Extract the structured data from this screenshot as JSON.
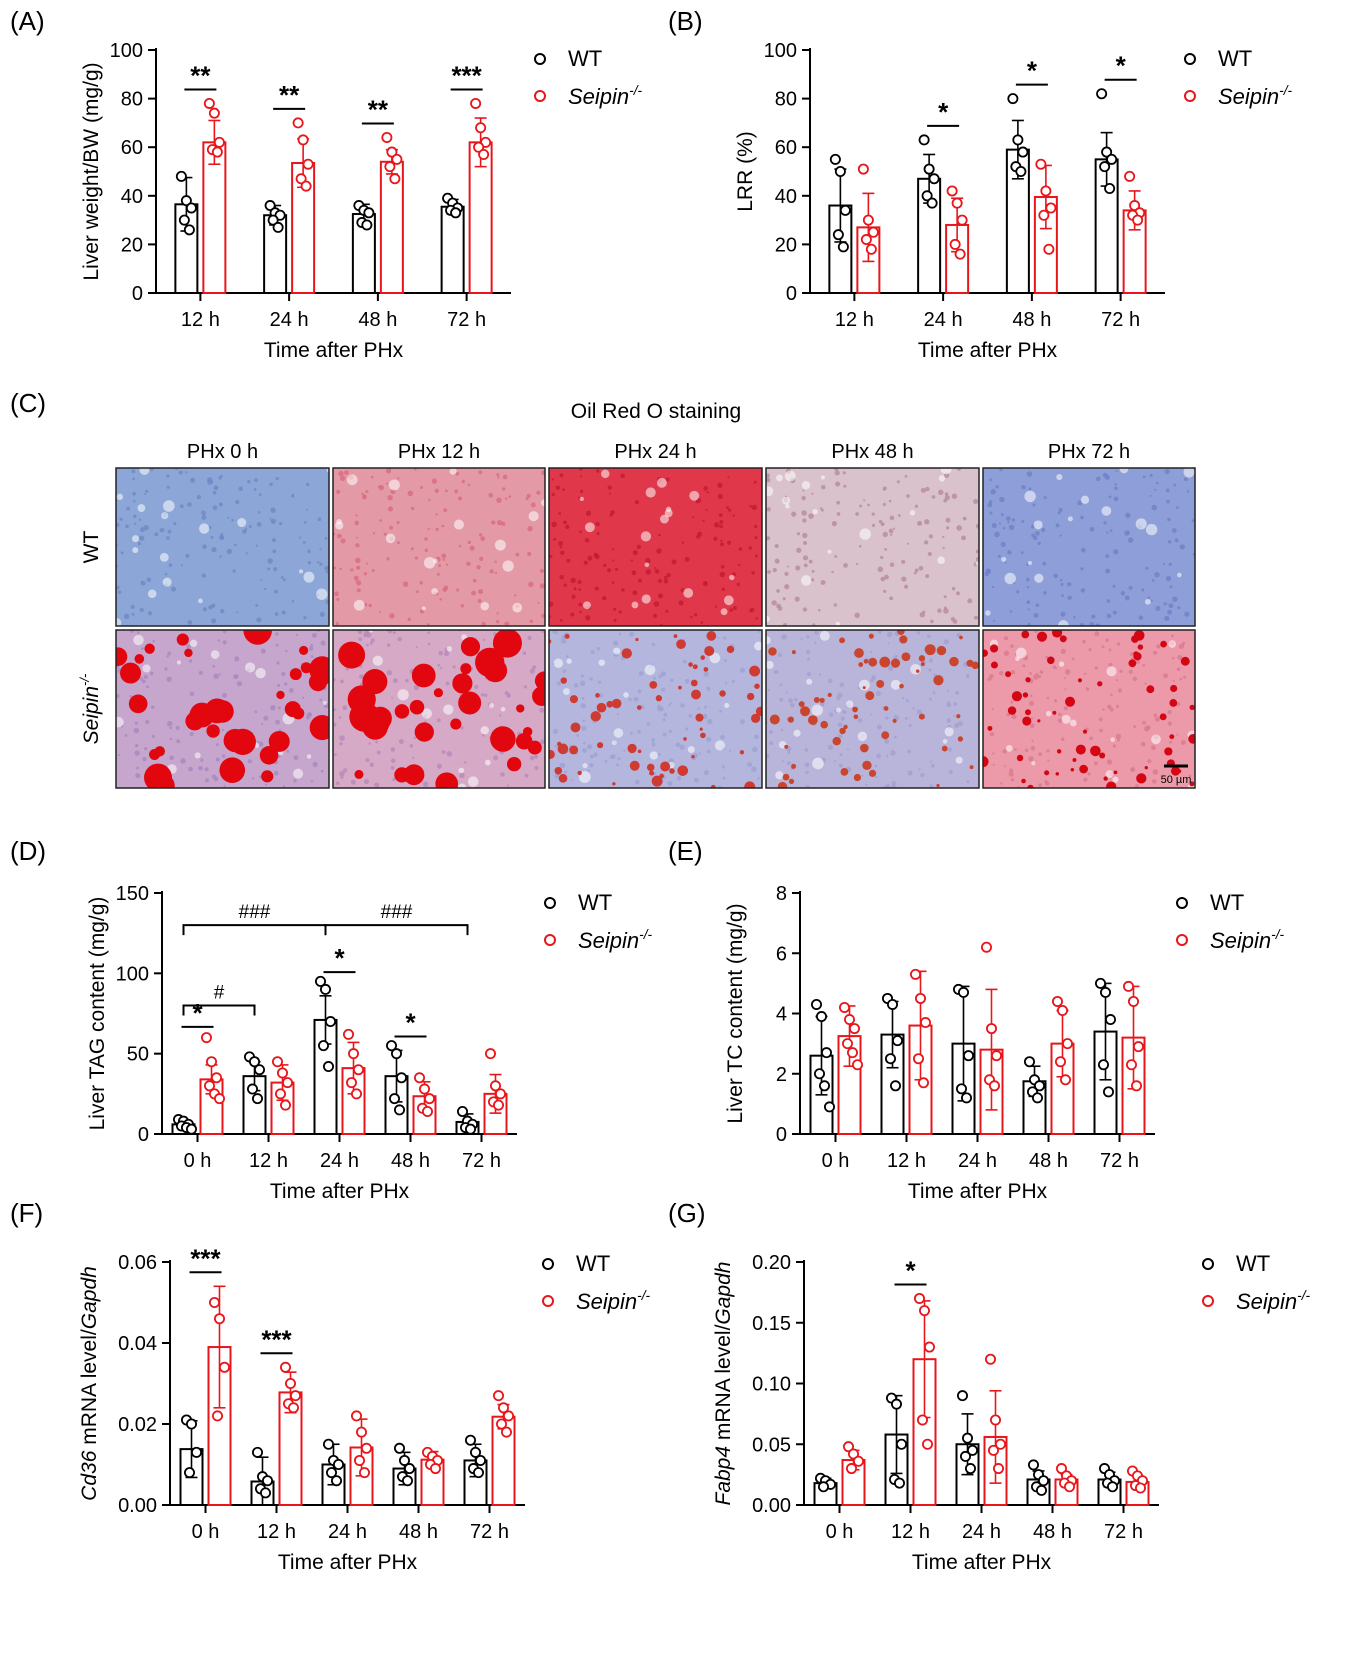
{
  "colors": {
    "wt": "#000000",
    "seipin": "#e8161b"
  },
  "legend": {
    "wt": "WT",
    "seipin_base": "Seipin",
    "seipin_sup": "-/-"
  },
  "chart_data": [
    {
      "panel": "(A)",
      "type": "bar",
      "categories": [
        "12 h",
        "24 h",
        "48 h",
        "72 h"
      ],
      "xlabel": "Time after PHx",
      "ylabel": [
        {
          "t": "Liver weight/BW (mg/g)",
          "i": false
        }
      ],
      "ylim": [
        0,
        100
      ],
      "yticks": [
        "0",
        "20",
        "40",
        "60",
        "80",
        "100"
      ],
      "series": [
        {
          "name": "WT",
          "values": [
            36.5,
            32,
            32.5,
            35.5
          ],
          "sd": [
            11,
            4,
            4,
            3
          ],
          "points": [
            [
              48,
              38,
              35,
              30,
              26
            ],
            [
              36,
              33,
              32,
              30,
              27
            ],
            [
              36,
              34,
              33,
              29,
              28
            ],
            [
              39,
              37,
              35,
              34,
              33
            ]
          ]
        },
        {
          "name": "Seipin-/-",
          "values": [
            62,
            53.5,
            54,
            62
          ],
          "sd": [
            9,
            10,
            5,
            10
          ],
          "points": [
            [
              78,
              74,
              62,
              59,
              58
            ],
            [
              70,
              63,
              53,
              47,
              44
            ],
            [
              64,
              58,
              55,
              52,
              47
            ],
            [
              78,
              68,
              62,
              60,
              57
            ]
          ]
        }
      ],
      "annotations": [
        {
          "i": 0,
          "t": "**"
        },
        {
          "i": 1,
          "t": "**"
        },
        {
          "i": 2,
          "t": "**"
        },
        {
          "i": 3,
          "t": "***"
        }
      ]
    },
    {
      "panel": "(B)",
      "type": "bar",
      "categories": [
        "12 h",
        "24 h",
        "48 h",
        "72 h"
      ],
      "xlabel": "Time after PHx",
      "ylabel": [
        {
          "t": "LRR (%)",
          "i": false
        }
      ],
      "ylim": [
        0,
        100
      ],
      "yticks": [
        "0",
        "20",
        "40",
        "60",
        "80",
        "100"
      ],
      "series": [
        {
          "name": "WT",
          "values": [
            36,
            47,
            59,
            55
          ],
          "sd": [
            15,
            10,
            12,
            11
          ],
          "points": [
            [
              55,
              50,
              34,
              24,
              19
            ],
            [
              63,
              51,
              47,
              40,
              37
            ],
            [
              80,
              63,
              58,
              52,
              50
            ],
            [
              82,
              58,
              55,
              52,
              43
            ]
          ]
        },
        {
          "name": "Seipin-/-",
          "values": [
            27,
            28,
            39.5,
            34
          ],
          "sd": [
            14,
            11,
            13,
            8
          ],
          "points": [
            [
              51,
              30,
              25,
              22,
              18
            ],
            [
              42,
              37,
              30,
              20,
              16
            ],
            [
              53,
              42,
              35,
              32,
              18
            ],
            [
              48,
              36,
              33,
              32,
              30
            ]
          ]
        }
      ],
      "annotations": [
        {
          "i": 1,
          "t": "*"
        },
        {
          "i": 2,
          "t": "*"
        },
        {
          "i": 3,
          "t": "*"
        }
      ]
    },
    {
      "panel": "(D)",
      "type": "bar",
      "categories": [
        "0 h",
        "12 h",
        "24 h",
        "48 h",
        "72 h"
      ],
      "xlabel": "Time after PHx",
      "ylabel": [
        {
          "t": "Liver TAG content (mg/g)",
          "i": false
        }
      ],
      "ylim": [
        0,
        150
      ],
      "yticks": [
        "0",
        "50",
        "100",
        "150"
      ],
      "series": [
        {
          "name": "WT",
          "values": [
            6,
            36,
            71,
            36,
            7.5
          ],
          "sd": [
            2,
            9,
            15,
            16,
            5
          ],
          "points": [
            [
              9,
              8,
              6,
              5,
              4,
              3
            ],
            [
              48,
              45,
              40,
              28,
              22
            ],
            [
              95,
              90,
              70,
              55,
              42
            ],
            [
              55,
              50,
              35,
              22,
              15
            ],
            [
              14,
              8,
              6,
              4,
              3
            ]
          ]
        },
        {
          "name": "Seipin-/-",
          "values": [
            34,
            32,
            41,
            23.5,
            25
          ],
          "sd": [
            9,
            11,
            16,
            9,
            12
          ],
          "points": [
            [
              60,
              45,
              35,
              30,
              25,
              22
            ],
            [
              45,
              38,
              32,
              25,
              18
            ],
            [
              62,
              50,
              40,
              32,
              25
            ],
            [
              35,
              28,
              22,
              16,
              14
            ],
            [
              50,
              30,
              25,
              20,
              18
            ]
          ]
        }
      ],
      "annotations": [
        {
          "i": 0,
          "t": "*"
        },
        {
          "i": 2,
          "t": "*"
        },
        {
          "i": 3,
          "t": "*"
        }
      ],
      "brackets": [
        {
          "from": 0,
          "to": 1,
          "y": 80,
          "t": "#"
        },
        {
          "from": 0,
          "to": 2,
          "y": 130,
          "t": "###"
        },
        {
          "from": 2,
          "to": 4,
          "y": 130,
          "t": "###"
        }
      ],
      "star_index_map": [
        0,
        2,
        4
      ]
    },
    {
      "panel": "(E)",
      "type": "bar",
      "categories": [
        "0 h",
        "12 h",
        "24 h",
        "48 h",
        "72 h"
      ],
      "xlabel": "Time after PHx",
      "ylabel": [
        {
          "t": "Liver TC content (mg/g)",
          "i": false
        }
      ],
      "ylim": [
        0,
        8
      ],
      "yticks": [
        "0",
        "2",
        "4",
        "6",
        "8"
      ],
      "series": [
        {
          "name": "WT",
          "values": [
            2.6,
            3.3,
            3.0,
            1.75,
            3.4
          ],
          "sd": [
            1.3,
            1.1,
            1.9,
            0.5,
            1.6
          ],
          "points": [
            [
              4.3,
              3.9,
              2.7,
              2.0,
              1.6,
              0.9
            ],
            [
              4.5,
              4.3,
              3.1,
              2.5,
              1.6
            ],
            [
              4.8,
              4.7,
              2.6,
              1.5,
              1.2
            ],
            [
              2.4,
              1.8,
              1.6,
              1.4,
              1.2
            ],
            [
              5.0,
              4.7,
              3.8,
              2.3,
              1.4
            ]
          ]
        },
        {
          "name": "Seipin-/-",
          "values": [
            3.25,
            3.6,
            2.8,
            3.0,
            3.2
          ],
          "sd": [
            1.0,
            1.8,
            2.0,
            1.1,
            1.7
          ],
          "points": [
            [
              4.2,
              3.8,
              3.5,
              3.0,
              2.7,
              2.3
            ],
            [
              5.3,
              4.5,
              3.7,
              2.5,
              1.7
            ],
            [
              6.2,
              3.5,
              2.6,
              1.8,
              1.6
            ],
            [
              4.4,
              4.1,
              3.0,
              2.4,
              1.8
            ],
            [
              4.9,
              4.4,
              2.9,
              2.3,
              1.6
            ]
          ]
        }
      ],
      "annotations": []
    },
    {
      "panel": "(F)",
      "type": "bar",
      "categories": [
        "0 h",
        "12 h",
        "24 h",
        "48 h",
        "72 h"
      ],
      "xlabel": "Time after PHx",
      "ylabel": [
        {
          "t": "Cd36",
          "i": true
        },
        {
          "t": " mRNA level/",
          "i": false
        },
        {
          "t": "Gapdh",
          "i": true
        }
      ],
      "ylim": [
        0,
        0.06
      ],
      "yticks": [
        "0.00",
        "0.02",
        "0.04",
        "0.06"
      ],
      "series": [
        {
          "name": "WT",
          "values": [
            0.0138,
            0.0058,
            0.01,
            0.009,
            0.011
          ],
          "sd": [
            0.007,
            0.006,
            0.005,
            0.004,
            0.004
          ],
          "points": [
            [
              0.021,
              0.02,
              0.013,
              0.008
            ],
            [
              0.013,
              0.007,
              0.006,
              0.004,
              0.003
            ],
            [
              0.015,
              0.011,
              0.01,
              0.008,
              0.006
            ],
            [
              0.014,
              0.011,
              0.009,
              0.007,
              0.006
            ],
            [
              0.016,
              0.013,
              0.011,
              0.009,
              0.008
            ]
          ]
        },
        {
          "name": "Seipin-/-",
          "values": [
            0.039,
            0.0278,
            0.0142,
            0.0112,
            0.0218
          ],
          "sd": [
            0.015,
            0.005,
            0.007,
            0.002,
            0.003
          ],
          "points": [
            [
              0.05,
              0.046,
              0.034,
              0.022
            ],
            [
              0.034,
              0.03,
              0.027,
              0.025,
              0.024
            ],
            [
              0.022,
              0.018,
              0.014,
              0.011,
              0.008
            ],
            [
              0.013,
              0.012,
              0.011,
              0.01,
              0.009
            ],
            [
              0.027,
              0.024,
              0.022,
              0.02,
              0.018
            ]
          ]
        }
      ],
      "annotations": [
        {
          "i": 0,
          "t": "***"
        },
        {
          "i": 1,
          "t": "***"
        }
      ]
    },
    {
      "panel": "(G)",
      "type": "bar",
      "categories": [
        "0 h",
        "12 h",
        "24 h",
        "48 h",
        "72 h"
      ],
      "xlabel": "Time after PHx",
      "ylabel": [
        {
          "t": "Fabp4",
          "i": true
        },
        {
          "t": " mRNA level/",
          "i": false
        },
        {
          "t": "Gapdh",
          "i": true
        }
      ],
      "ylim": [
        0,
        0.2
      ],
      "yticks": [
        "0.00",
        "0.05",
        "0.10",
        "0.15",
        "0.20"
      ],
      "series": [
        {
          "name": "WT",
          "values": [
            0.018,
            0.058,
            0.05,
            0.021,
            0.021
          ],
          "sd": [
            0.004,
            0.032,
            0.025,
            0.007,
            0.006
          ],
          "points": [
            [
              0.022,
              0.02,
              0.017,
              0.015
            ],
            [
              0.088,
              0.083,
              0.05,
              0.021,
              0.018
            ],
            [
              0.09,
              0.055,
              0.045,
              0.04,
              0.03
            ],
            [
              0.033,
              0.025,
              0.02,
              0.015,
              0.012
            ],
            [
              0.03,
              0.025,
              0.02,
              0.018,
              0.015
            ]
          ]
        },
        {
          "name": "Seipin-/-",
          "values": [
            0.037,
            0.12,
            0.056,
            0.021,
            0.019
          ],
          "sd": [
            0.008,
            0.048,
            0.038,
            0.004,
            0.005
          ],
          "points": [
            [
              0.048,
              0.042,
              0.036,
              0.03
            ],
            [
              0.17,
              0.16,
              0.13,
              0.07,
              0.05
            ],
            [
              0.12,
              0.07,
              0.05,
              0.045,
              0.03
            ],
            [
              0.03,
              0.024,
              0.02,
              0.018,
              0.015
            ],
            [
              0.028,
              0.024,
              0.02,
              0.016,
              0.014
            ]
          ]
        }
      ],
      "annotations": [
        {
          "i": 1,
          "t": "*"
        }
      ]
    }
  ],
  "staining": {
    "panel": "(C)",
    "title": "Oil Red O staining",
    "columns": [
      "PHx 0 h",
      "PHx 12 h",
      "PHx 24 h",
      "PHx 48 h",
      "PHx 72 h"
    ],
    "rows": [
      "WT",
      "Seipin-/-"
    ],
    "scale_bar": "50 µm"
  }
}
